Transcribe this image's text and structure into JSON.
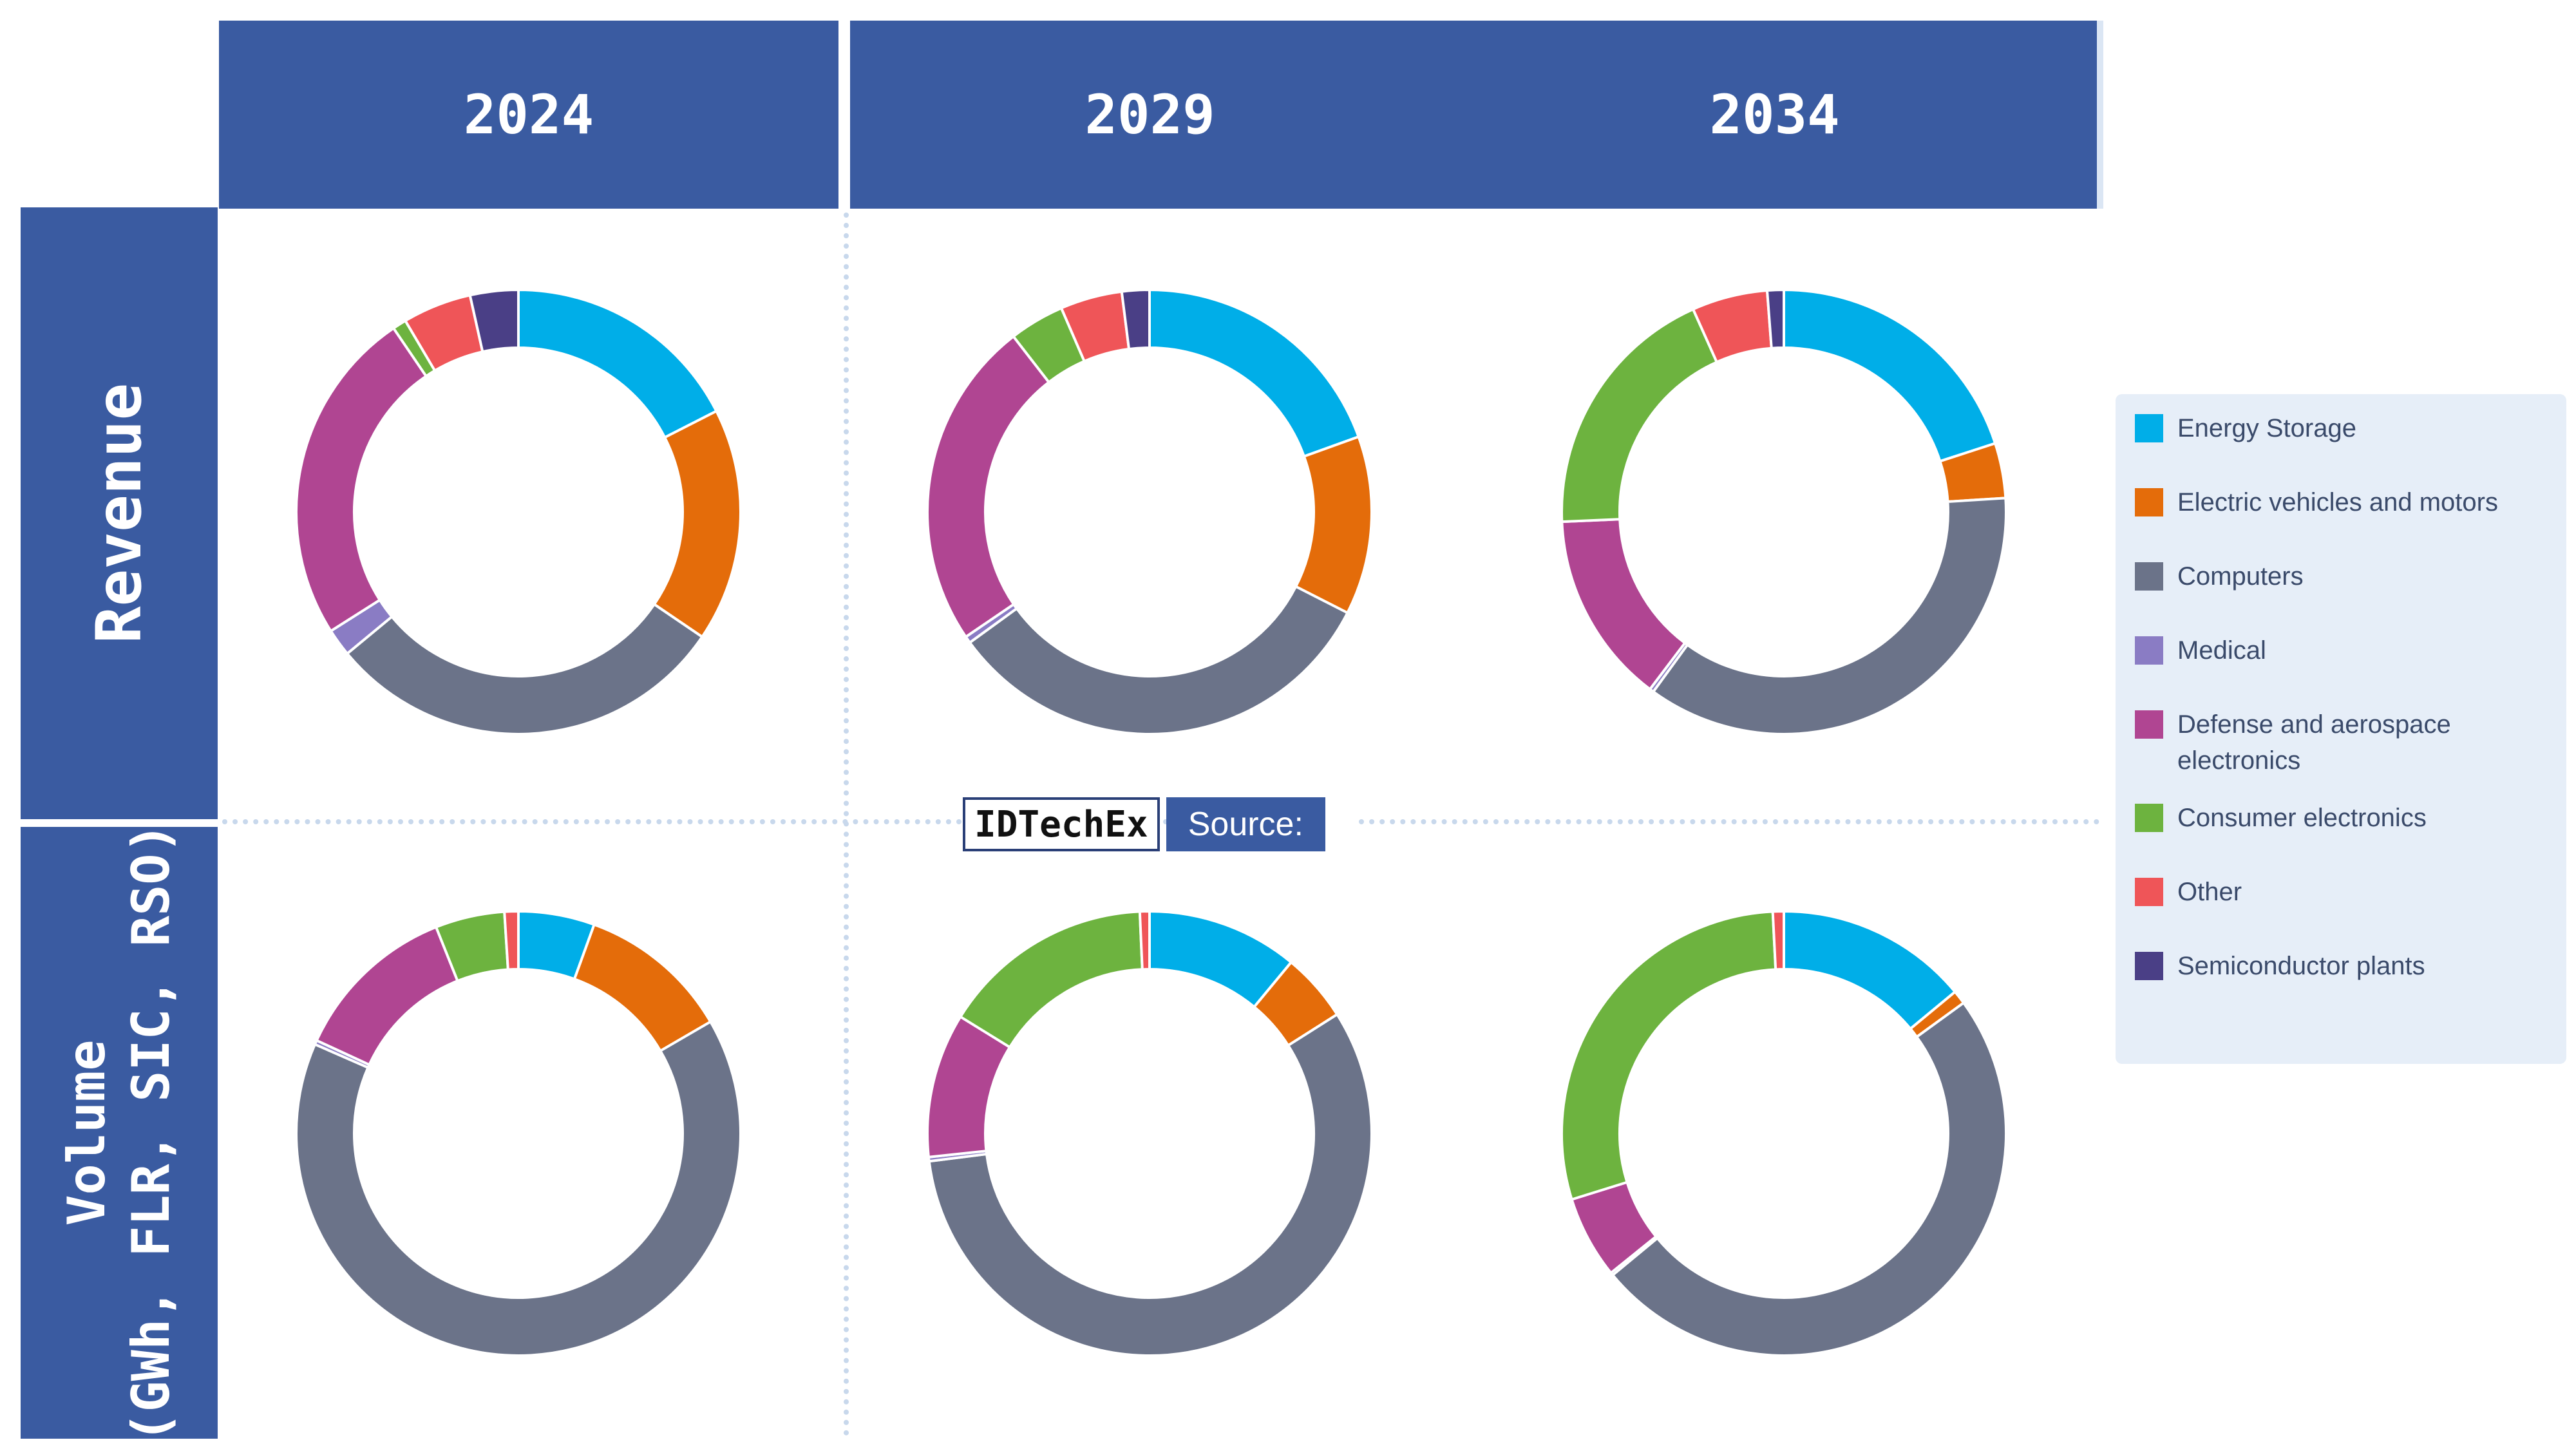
{
  "headers": {
    "col_2024": "2024",
    "col_2029": "2029",
    "col_2034": "2034",
    "row_revenue": "Revenue",
    "row_volume_line1": "Volume",
    "row_volume_line2": "(GWh, FLR, SIC, RSO)"
  },
  "watermark": {
    "left": "IDTechEx",
    "right": "Source:"
  },
  "colors": {
    "header_bg": "#3a5ba1",
    "grid_dots": "#c8d8ec",
    "legend_bg": "#e6eef8"
  },
  "legend": [
    {
      "key": "s1",
      "label": "Energy Storage",
      "color": "#00aee8"
    },
    {
      "key": "s2",
      "label": "Electric vehicles and motors",
      "color": "#e46c0a"
    },
    {
      "key": "s3",
      "label": "Computers",
      "color": "#6b7389"
    },
    {
      "key": "s4",
      "label": "Medical",
      "color": "#8a7cc4"
    },
    {
      "key": "s5",
      "label": "Defense and aerospace electronics",
      "color": "#b04592"
    },
    {
      "key": "s6",
      "label": "Consumer electronics",
      "color": "#6db33f"
    },
    {
      "key": "s7",
      "label": "Other",
      "color": "#ef5558"
    },
    {
      "key": "s8",
      "label": "Semiconductor plants",
      "color": "#4a3f86"
    }
  ],
  "chart_data": [
    {
      "type": "pie",
      "variant": "donut",
      "row": "Revenue",
      "column": "2024",
      "slices": [
        {
          "key": "s1",
          "value": 17.5
        },
        {
          "key": "s2",
          "value": 17.0
        },
        {
          "key": "s3",
          "value": 29.5
        },
        {
          "key": "s4",
          "value": 2.0
        },
        {
          "key": "s5",
          "value": 24.5
        },
        {
          "key": "s6",
          "value": 1.0
        },
        {
          "key": "s7",
          "value": 5.0
        },
        {
          "key": "s8",
          "value": 3.5
        }
      ]
    },
    {
      "type": "pie",
      "variant": "donut",
      "row": "Revenue",
      "column": "2029",
      "slices": [
        {
          "key": "s1",
          "value": 19.5
        },
        {
          "key": "s2",
          "value": 13.0
        },
        {
          "key": "s3",
          "value": 32.5
        },
        {
          "key": "s4",
          "value": 0.5
        },
        {
          "key": "s5",
          "value": 24.0
        },
        {
          "key": "s6",
          "value": 4.0
        },
        {
          "key": "s7",
          "value": 4.5
        },
        {
          "key": "s8",
          "value": 2.0
        }
      ]
    },
    {
      "type": "pie",
      "variant": "donut",
      "row": "Revenue",
      "column": "2034",
      "slices": [
        {
          "key": "s1",
          "value": 20.0
        },
        {
          "key": "s2",
          "value": 4.0
        },
        {
          "key": "s3",
          "value": 36.0
        },
        {
          "key": "s4",
          "value": 0.3
        },
        {
          "key": "s5",
          "value": 14.0
        },
        {
          "key": "s6",
          "value": 19.0
        },
        {
          "key": "s7",
          "value": 5.5
        },
        {
          "key": "s8",
          "value": 1.2
        }
      ]
    },
    {
      "type": "pie",
      "variant": "donut",
      "row": "Volume (GWh, FLR, SIC, RSO)",
      "column": "2024",
      "slices": [
        {
          "key": "s1",
          "value": 5.5
        },
        {
          "key": "s2",
          "value": 11.0
        },
        {
          "key": "s3",
          "value": 64.5
        },
        {
          "key": "s4",
          "value": 0.3
        },
        {
          "key": "s5",
          "value": 12.0
        },
        {
          "key": "s6",
          "value": 5.0
        },
        {
          "key": "s7",
          "value": 1.0
        },
        {
          "key": "s8",
          "value": 0.0
        }
      ]
    },
    {
      "type": "pie",
      "variant": "donut",
      "row": "Volume (GWh, FLR, SIC, RSO)",
      "column": "2029",
      "slices": [
        {
          "key": "s1",
          "value": 11.0
        },
        {
          "key": "s2",
          "value": 5.0
        },
        {
          "key": "s3",
          "value": 57.0
        },
        {
          "key": "s4",
          "value": 0.3
        },
        {
          "key": "s5",
          "value": 10.5
        },
        {
          "key": "s6",
          "value": 15.5
        },
        {
          "key": "s7",
          "value": 0.7
        },
        {
          "key": "s8",
          "value": 0.0
        }
      ]
    },
    {
      "type": "pie",
      "variant": "donut",
      "row": "Volume (GWh, FLR, SIC, RSO)",
      "column": "2034",
      "slices": [
        {
          "key": "s1",
          "value": 14.0
        },
        {
          "key": "s2",
          "value": 1.0
        },
        {
          "key": "s3",
          "value": 49.0
        },
        {
          "key": "s4",
          "value": 0.2
        },
        {
          "key": "s5",
          "value": 6.0
        },
        {
          "key": "s6",
          "value": 29.0
        },
        {
          "key": "s7",
          "value": 0.8
        },
        {
          "key": "s8",
          "value": 0.0
        }
      ]
    }
  ]
}
